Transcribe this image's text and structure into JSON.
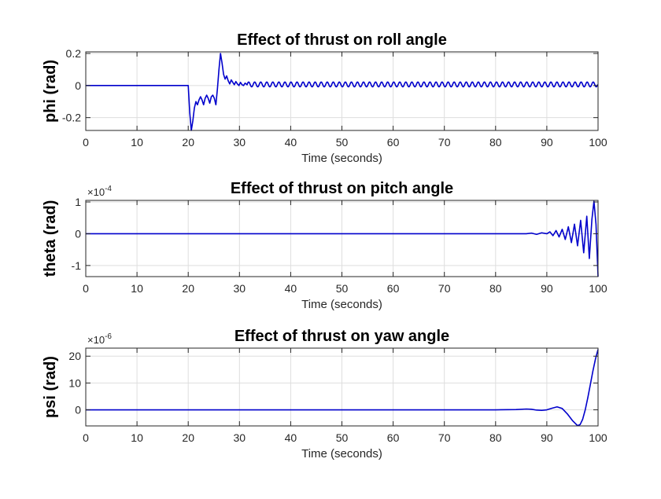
{
  "chart_data": [
    {
      "type": "line",
      "title": "Effect of thrust on roll angle",
      "xlabel": "Time (seconds)",
      "ylabel": "phi (rad)",
      "xlim": [
        0,
        100
      ],
      "ylim": [
        -0.28,
        0.21
      ],
      "xticks": [
        0,
        10,
        20,
        30,
        40,
        50,
        60,
        70,
        80,
        90,
        100
      ],
      "xtick_labels": [
        "0",
        "10",
        "20",
        "30",
        "40",
        "50",
        "60",
        "70",
        "80",
        "90",
        "100"
      ],
      "yticks": [
        -0.2,
        0,
        0.2
      ],
      "ytick_labels": [
        "-0.2",
        "0",
        "0.2"
      ],
      "exponent_label": "",
      "grid": true,
      "series_color": "#0000cc",
      "series": [
        {
          "x": [
            0,
            20,
            20.3,
            20.6,
            20.9,
            21.2,
            21.5,
            21.8,
            22.1,
            22.4,
            22.7,
            23.0,
            23.3,
            23.6,
            23.9,
            24.2,
            24.5,
            24.8,
            25.1,
            25.4,
            25.7,
            26.0,
            26.3,
            26.6,
            26.9,
            27.2,
            27.5,
            27.8,
            28.1,
            28.4,
            28.7,
            29.0,
            29.3,
            29.6,
            29.9,
            30.2,
            30.5,
            30.8,
            31.1,
            31.5,
            100
          ],
          "y": [
            0,
            0,
            -0.17,
            -0.29,
            -0.22,
            -0.14,
            -0.1,
            -0.12,
            -0.09,
            -0.07,
            -0.09,
            -0.12,
            -0.08,
            -0.06,
            -0.08,
            -0.11,
            -0.07,
            -0.06,
            -0.08,
            -0.12,
            -0.02,
            0.1,
            0.2,
            0.14,
            0.07,
            0.04,
            0.06,
            0.03,
            0.01,
            0.035,
            0.02,
            0.005,
            0.025,
            0.01,
            0.0,
            0.02,
            0.005,
            0.0,
            0.015,
            0.005,
            0.005
          ]
        }
      ],
      "oscillation": {
        "start": 31.5,
        "end": 100,
        "period": 1.18,
        "amplitude": 0.015,
        "offset": 0.007
      }
    },
    {
      "type": "line",
      "title": "Effect of thrust on pitch angle",
      "xlabel": "Time (seconds)",
      "ylabel": "theta (rad)",
      "xlim": [
        0,
        100
      ],
      "ylim": [
        -1.35,
        1.05
      ],
      "xticks": [
        0,
        10,
        20,
        30,
        40,
        50,
        60,
        70,
        80,
        90,
        100
      ],
      "xtick_labels": [
        "0",
        "10",
        "20",
        "30",
        "40",
        "50",
        "60",
        "70",
        "80",
        "90",
        "100"
      ],
      "yticks": [
        -1,
        0,
        1
      ],
      "ytick_labels": [
        "-1",
        "0",
        "1"
      ],
      "exponent_label": "×10",
      "exponent_power": "-4",
      "grid": true,
      "series_color": "#0000cc",
      "series": [
        {
          "x": [
            0,
            80,
            84,
            86,
            87,
            88,
            89,
            90,
            90.6,
            91.2,
            91.8,
            92.4,
            93.0,
            93.6,
            94.2,
            94.8,
            95.4,
            96.0,
            96.6,
            97.2,
            97.8,
            98.3,
            98.8,
            99.2,
            99.6,
            100
          ],
          "y": [
            0,
            0,
            0,
            0,
            0.02,
            -0.02,
            0.03,
            0.0,
            0.06,
            -0.06,
            0.1,
            -0.1,
            0.14,
            -0.18,
            0.22,
            -0.28,
            0.3,
            -0.38,
            0.42,
            -0.6,
            0.55,
            -0.78,
            0.45,
            1.02,
            0.3,
            -1.35
          ]
        }
      ]
    },
    {
      "type": "line",
      "title": "Effect of thrust on yaw angle",
      "xlabel": "Time (seconds)",
      "ylabel": "psi (rad)",
      "xlim": [
        0,
        100
      ],
      "ylim": [
        -6,
        23
      ],
      "xticks": [
        0,
        10,
        20,
        30,
        40,
        50,
        60,
        70,
        80,
        90,
        100
      ],
      "xtick_labels": [
        "0",
        "10",
        "20",
        "30",
        "40",
        "50",
        "60",
        "70",
        "80",
        "90",
        "100"
      ],
      "yticks": [
        0,
        10,
        20
      ],
      "ytick_labels": [
        "0",
        "10",
        "20"
      ],
      "exponent_label": "×10",
      "exponent_power": "-6",
      "grid": true,
      "series_color": "#0000cc",
      "series": [
        {
          "x": [
            0,
            80,
            84,
            86,
            87,
            88,
            89,
            90,
            91,
            92,
            93,
            94,
            95,
            96,
            96.5,
            97,
            97.5,
            98,
            98.5,
            99,
            99.5,
            100
          ],
          "y": [
            0,
            0,
            0.1,
            0.3,
            0.2,
            -0.1,
            -0.2,
            0.0,
            0.6,
            1.1,
            0.5,
            -1.5,
            -4.0,
            -5.9,
            -5.5,
            -3.5,
            0.0,
            4.5,
            9.5,
            14.5,
            19.0,
            22.5
          ]
        }
      ]
    }
  ]
}
